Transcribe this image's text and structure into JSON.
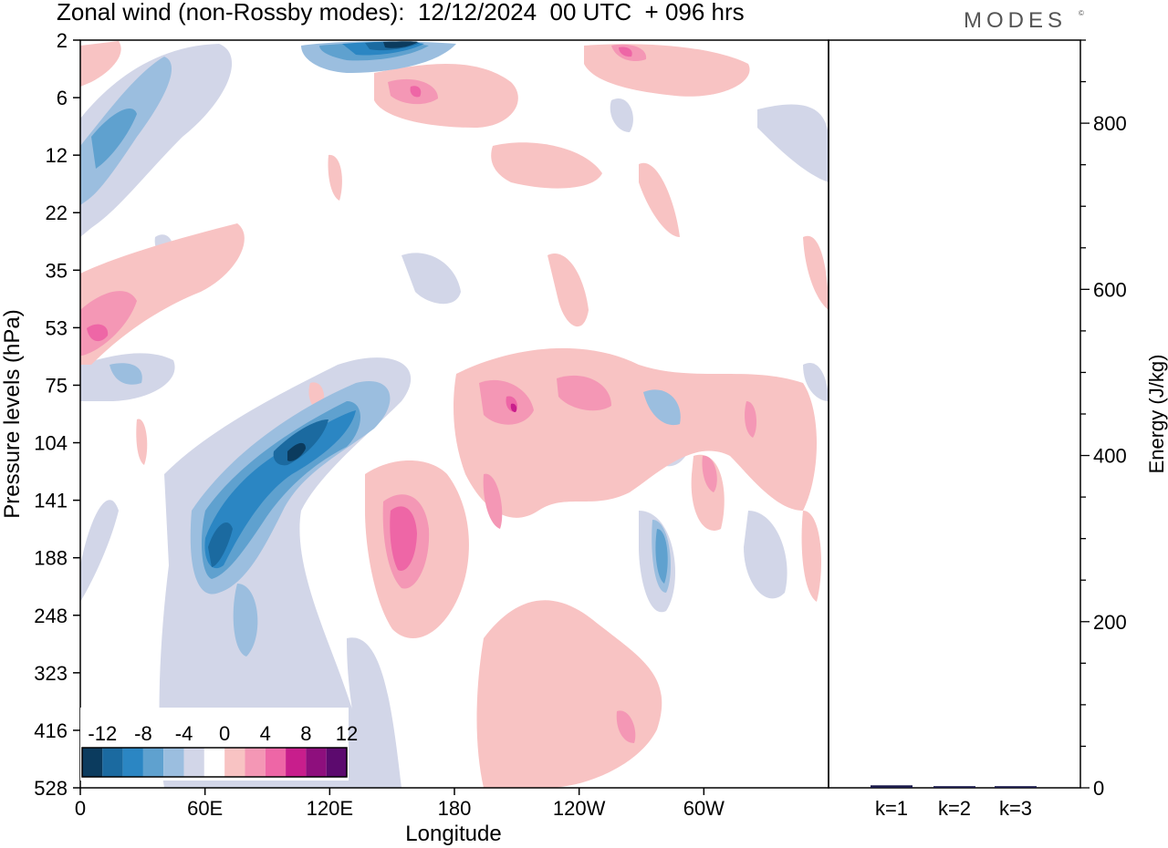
{
  "title": "Zonal wind (non-Rossby modes):  12/12/2024  00 UTC  + 096 hrs",
  "brand": "MODES",
  "brand_mark": "©",
  "chart_data": [
    {
      "type": "heatmap",
      "title": "Zonal wind (non-Rossby modes):  12/12/2024  00 UTC  + 096 hrs",
      "xlabel": "Longitude",
      "ylabel": "Pressure levels (hPa)",
      "x_ticks": [
        "0",
        "60E",
        "120E",
        "180",
        "120W",
        "60W"
      ],
      "x_tick_values": [
        0,
        60,
        120,
        180,
        240,
        300
      ],
      "xlim": [
        0,
        360
      ],
      "y_ticks": [
        "2",
        "6",
        "12",
        "22",
        "35",
        "53",
        "75",
        "104",
        "141",
        "188",
        "248",
        "323",
        "416",
        "528"
      ],
      "y_scale": "pressure levels, top 2 hPa to bottom 528 hPa",
      "colorbar": {
        "labels": [
          "-12",
          "-8",
          "-4",
          "0",
          "4",
          "8",
          "12"
        ],
        "levels": [
          -14,
          -12,
          -10,
          -8,
          -6,
          -4,
          -2,
          2,
          4,
          6,
          8,
          10,
          12,
          14
        ],
        "colors": [
          "#0b3b5e",
          "#1b6aa0",
          "#2b86c3",
          "#5fa1cf",
          "#9bbedf",
          "#d2d6e8",
          "#ffffff",
          "#f8c3c3",
          "#f497b5",
          "#ee66a6",
          "#c81e8c",
          "#8e0f7d",
          "#5c0a6e"
        ],
        "placement": "bottom-left"
      },
      "features": [
        {
          "desc": "negative band 60E-130E, 75-188 hPa",
          "lon_center": 105,
          "level": "104",
          "value": -12
        },
        {
          "desc": "negative band upper left",
          "lon_center": 20,
          "level": "12",
          "value": -6
        },
        {
          "desc": "negative core top",
          "lon_center": 150,
          "level": "2",
          "value": -14
        },
        {
          "desc": "positive core",
          "lon_center": 160,
          "level": "141",
          "value": 8
        },
        {
          "desc": "positive core left",
          "lon_center": 5,
          "level": "53",
          "value": 8
        },
        {
          "desc": "positive pocket",
          "lon_center": 205,
          "level": "104",
          "value": 8
        },
        {
          "desc": "negative pocket",
          "lon_center": 285,
          "level": "188",
          "value": -8
        }
      ]
    },
    {
      "type": "bar",
      "categories": [
        "k=1",
        "k=2",
        "k=3"
      ],
      "values": [
        3,
        2,
        2
      ],
      "ylabel": "Energy (J/kg)",
      "ylim": [
        0,
        900
      ],
      "y_ticks": [
        0,
        200,
        400,
        600,
        800
      ],
      "bar_color": "#1a1a4a"
    }
  ]
}
